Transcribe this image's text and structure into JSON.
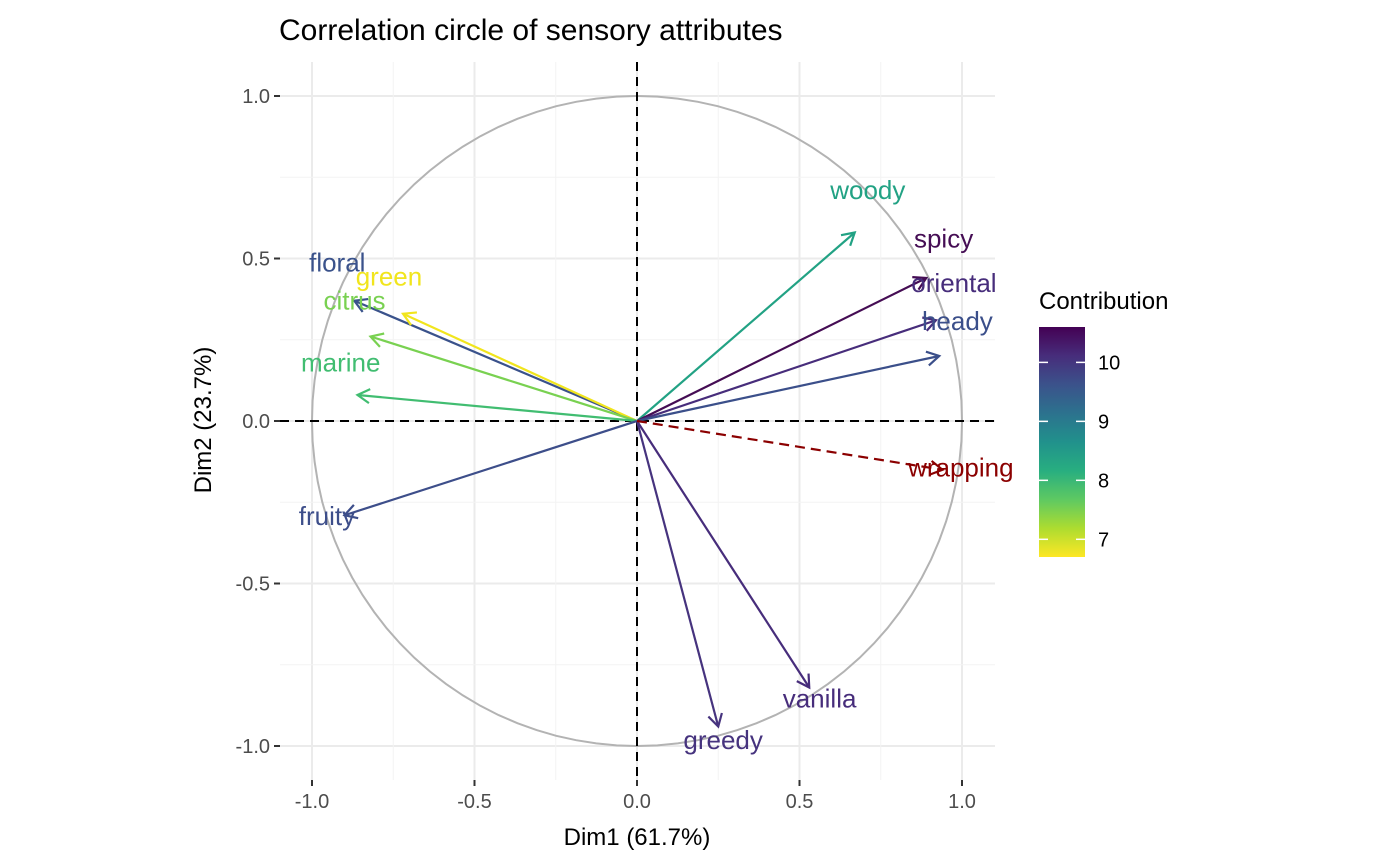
{
  "chart_data": {
    "type": "scatter",
    "subtype": "pca-correlation-circle",
    "title": "Correlation circle of sensory attributes",
    "xlabel": "Dim1 (61.7%)",
    "ylabel": "Dim2 (23.7%)",
    "xlim": [
      -1.0,
      1.0
    ],
    "ylim": [
      -1.0,
      1.0
    ],
    "x_ticks": [
      -1.0,
      -0.5,
      0.0,
      0.5,
      1.0
    ],
    "x_tick_labels": [
      "-1.0",
      "-0.5",
      "0.0",
      "0.5",
      "1.0"
    ],
    "y_ticks": [
      -1.0,
      -0.5,
      0.0,
      0.5,
      1.0
    ],
    "y_tick_labels": [
      "-1.0",
      "-0.5",
      "0.0",
      "0.5",
      "1.0"
    ],
    "grid": true,
    "unit_circle": true,
    "legend": {
      "title": "Contribution",
      "placement": "right",
      "type": "colorbar",
      "range": [
        6.7,
        10.6
      ],
      "ticks": [
        7,
        8,
        9,
        10
      ],
      "tick_labels": [
        "7",
        "8",
        "9",
        "10"
      ],
      "palette": "viridis",
      "reversed": true
    },
    "variables": [
      {
        "name": "woody",
        "x": 0.67,
        "y": 0.58,
        "contribution": 8.2,
        "color": "#22a284"
      },
      {
        "name": "spicy",
        "x": 0.89,
        "y": 0.44,
        "contribution": 10.5,
        "color": "#450d54"
      },
      {
        "name": "oriental",
        "x": 0.92,
        "y": 0.31,
        "contribution": 10.1,
        "color": "#472d7b"
      },
      {
        "name": "heady",
        "x": 0.93,
        "y": 0.2,
        "contribution": 9.5,
        "color": "#3b4f8a"
      },
      {
        "name": "floral",
        "x": -0.87,
        "y": 0.37,
        "contribution": 9.6,
        "color": "#3a528b"
      },
      {
        "name": "green",
        "x": -0.72,
        "y": 0.33,
        "contribution": 6.8,
        "color": "#f1e51d"
      },
      {
        "name": "citrus",
        "x": -0.82,
        "y": 0.26,
        "contribution": 7.4,
        "color": "#79d151"
      },
      {
        "name": "marine",
        "x": -0.86,
        "y": 0.08,
        "contribution": 7.9,
        "color": "#41bd71"
      },
      {
        "name": "fruity",
        "x": -0.9,
        "y": -0.29,
        "contribution": 9.5,
        "color": "#3d4e8a"
      },
      {
        "name": "vanilla",
        "x": 0.53,
        "y": -0.82,
        "contribution": 10.1,
        "color": "#472d7b"
      },
      {
        "name": "greedy",
        "x": 0.25,
        "y": -0.94,
        "contribution": 10.2,
        "color": "#46337e"
      }
    ],
    "supplementary": [
      {
        "name": "wrapping",
        "x": 0.94,
        "y": -0.15,
        "color": "#8b0000",
        "linestyle": "dashed"
      }
    ]
  }
}
